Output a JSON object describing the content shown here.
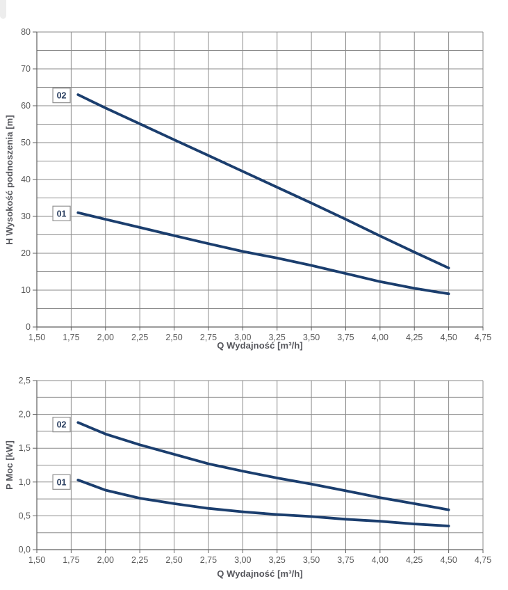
{
  "page": {
    "background": "#ffffff"
  },
  "colors": {
    "curve": "#1b3e6e",
    "grid": "#8a8a8a",
    "axis": "#5f5f5f",
    "tick_text": "#595959",
    "title_text": "#55565c",
    "box_border": "#909090",
    "box_fill": "#ffffff",
    "box_text": "#273c5e"
  },
  "chart_data": [
    {
      "type": "line",
      "title": "",
      "xlabel": "Q Wydajność [m³/h]",
      "ylabel": "H Wysokość podnoszenia [m]",
      "xlim": [
        1.5,
        4.75
      ],
      "ylim": [
        0,
        80
      ],
      "grid": true,
      "legend_position": "boxed-labels-left-of-curves",
      "x_tick_step": 0.25,
      "x_tick_labels": [
        "1,50",
        "1,75",
        "2,00",
        "2,25",
        "2,50",
        "2,75",
        "3,00",
        "3,25",
        "3,50",
        "3,75",
        "4,00",
        "4,25",
        "4,50",
        "4,75"
      ],
      "y_grid_step": 5,
      "y_tick_step": 10,
      "y_tick_labels": [
        "0",
        "10",
        "20",
        "30",
        "40",
        "50",
        "60",
        "70",
        "80"
      ],
      "series": [
        {
          "name": "02",
          "label_box": {
            "x": 1.68,
            "y": 62.8
          },
          "points": [
            [
              1.8,
              63
            ],
            [
              2.0,
              59.4
            ],
            [
              2.25,
              55.1
            ],
            [
              2.5,
              50.8
            ],
            [
              2.75,
              46.5
            ],
            [
              3.0,
              42.2
            ],
            [
              3.25,
              37.9
            ],
            [
              3.5,
              33.6
            ],
            [
              3.75,
              29.2
            ],
            [
              4.0,
              24.7
            ],
            [
              4.25,
              20.3
            ],
            [
              4.5,
              16
            ]
          ]
        },
        {
          "name": "01",
          "label_box": {
            "x": 1.68,
            "y": 30.8
          },
          "points": [
            [
              1.8,
              31
            ],
            [
              2.0,
              29.2
            ],
            [
              2.25,
              27.0
            ],
            [
              2.5,
              24.8
            ],
            [
              2.75,
              22.6
            ],
            [
              3.0,
              20.5
            ],
            [
              3.25,
              18.7
            ],
            [
              3.5,
              16.7
            ],
            [
              3.75,
              14.5
            ],
            [
              4.0,
              12.3
            ],
            [
              4.25,
              10.5
            ],
            [
              4.5,
              9
            ]
          ]
        }
      ]
    },
    {
      "type": "line",
      "title": "",
      "xlabel": "Q Wydajność [m³/h]",
      "ylabel": "P Moc [kW]",
      "xlim": [
        1.5,
        4.75
      ],
      "ylim": [
        0,
        2.5
      ],
      "grid": true,
      "legend_position": "boxed-labels-left-of-curves",
      "x_tick_step": 0.25,
      "x_tick_labels": [
        "1,50",
        "1,75",
        "2,00",
        "2,25",
        "2,50",
        "2,75",
        "3,00",
        "3,25",
        "3,50",
        "3,75",
        "4,00",
        "4,25",
        "4,50",
        "4,75"
      ],
      "y_grid_step": 0.25,
      "y_tick_step": 0.5,
      "y_tick_labels": [
        "0,0",
        "0,5",
        "1,0",
        "1,5",
        "2,0",
        "2,5"
      ],
      "series": [
        {
          "name": "02",
          "label_box": {
            "x": 1.68,
            "y": 1.85
          },
          "points": [
            [
              1.8,
              1.88
            ],
            [
              2.0,
              1.71
            ],
            [
              2.25,
              1.55
            ],
            [
              2.5,
              1.41
            ],
            [
              2.75,
              1.27
            ],
            [
              3.0,
              1.16
            ],
            [
              3.25,
              1.06
            ],
            [
              3.5,
              0.97
            ],
            [
              3.75,
              0.87
            ],
            [
              4.0,
              0.77
            ],
            [
              4.25,
              0.68
            ],
            [
              4.5,
              0.59
            ]
          ]
        },
        {
          "name": "01",
          "label_box": {
            "x": 1.68,
            "y": 1.0
          },
          "points": [
            [
              1.8,
              1.03
            ],
            [
              2.0,
              0.88
            ],
            [
              2.25,
              0.76
            ],
            [
              2.5,
              0.68
            ],
            [
              2.75,
              0.61
            ],
            [
              3.0,
              0.56
            ],
            [
              3.25,
              0.52
            ],
            [
              3.5,
              0.49
            ],
            [
              3.75,
              0.45
            ],
            [
              4.0,
              0.42
            ],
            [
              4.25,
              0.38
            ],
            [
              4.5,
              0.35
            ]
          ]
        }
      ]
    }
  ]
}
